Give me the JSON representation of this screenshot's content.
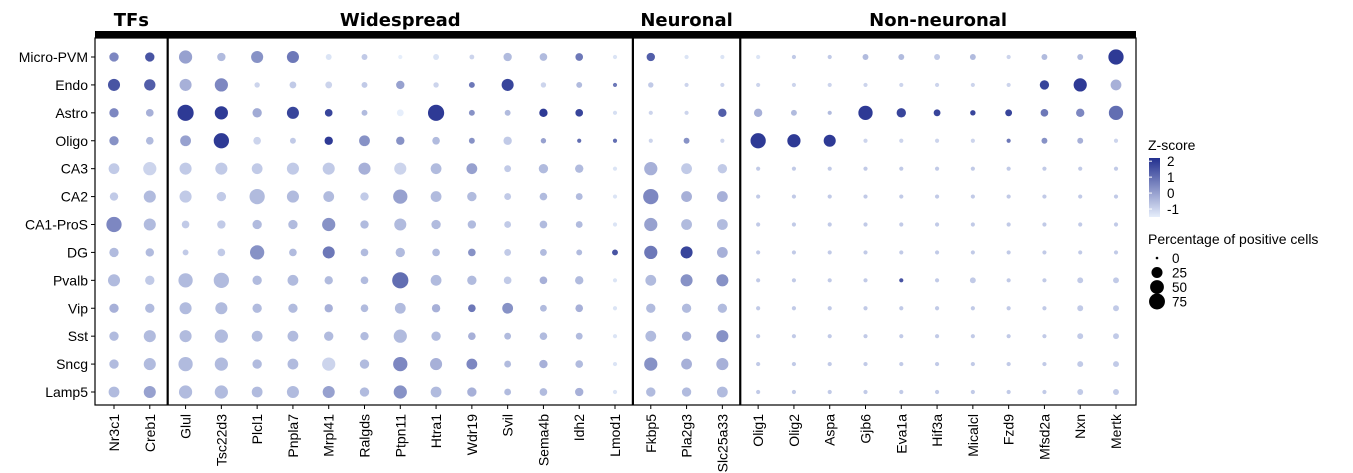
{
  "chart_data": {
    "type": "dotplot",
    "groups": [
      {
        "label": "TFs",
        "count": 2
      },
      {
        "label": "Widespread",
        "count": 13
      },
      {
        "label": "Neuronal",
        "count": 3
      },
      {
        "label": "Non-neuronal",
        "count": 11
      }
    ],
    "columns": [
      "Nr3c1",
      "Creb1",
      "Glul",
      "Tsc22d3",
      "Plcl1",
      "Pnpla7",
      "Mrpl41",
      "Ralgds",
      "Ptpn11",
      "Htra1",
      "Wdr19",
      "Svil",
      "Sema4b",
      "Idh2",
      "Lmod1",
      "Fkbp5",
      "Pla2g3",
      "Slc25a33",
      "Olig1",
      "Olig2",
      "Aspa",
      "Gjb6",
      "Eva1a",
      "Hif3a",
      "Micalcl",
      "Fzd9",
      "Mfsd2a",
      "Nxn",
      "Mertk"
    ],
    "rows": [
      "Micro-PVM",
      "Endo",
      "Astro",
      "Oligo",
      "CA3",
      "CA2",
      "CA1-ProS",
      "DG",
      "Pvalb",
      "Vip",
      "Sst",
      "Sncg",
      "Lamp5"
    ],
    "pct": [
      [
        15,
        15,
        30,
        12,
        25,
        25,
        6,
        6,
        3,
        6,
        4,
        12,
        10,
        10,
        3,
        12,
        3,
        3,
        3,
        3,
        3,
        6,
        6,
        6,
        6,
        3,
        6,
        6,
        40
      ],
      [
        25,
        22,
        25,
        30,
        5,
        8,
        8,
        6,
        12,
        5,
        6,
        25,
        5,
        6,
        3,
        5,
        3,
        3,
        3,
        3,
        3,
        3,
        3,
        3,
        3,
        3,
        15,
        30,
        20
      ],
      [
        15,
        10,
        45,
        30,
        15,
        25,
        10,
        6,
        8,
        45,
        6,
        6,
        12,
        10,
        3,
        3,
        3,
        12,
        12,
        6,
        3,
        35,
        15,
        8,
        5,
        8,
        10,
        12,
        35
      ],
      [
        15,
        10,
        20,
        40,
        10,
        6,
        12,
        20,
        12,
        10,
        6,
        12,
        5,
        3,
        3,
        3,
        6,
        3,
        40,
        30,
        25,
        3,
        3,
        3,
        3,
        3,
        6,
        6,
        3
      ],
      [
        20,
        30,
        25,
        25,
        20,
        25,
        25,
        25,
        25,
        20,
        20,
        8,
        15,
        12,
        3,
        30,
        20,
        15,
        3,
        3,
        3,
        3,
        3,
        3,
        3,
        3,
        3,
        3,
        3
      ],
      [
        12,
        25,
        25,
        15,
        40,
        25,
        20,
        12,
        35,
        20,
        15,
        8,
        10,
        8,
        3,
        40,
        20,
        20,
        3,
        3,
        3,
        3,
        3,
        3,
        3,
        3,
        3,
        3,
        3
      ],
      [
        40,
        25,
        10,
        12,
        15,
        15,
        30,
        12,
        25,
        15,
        12,
        8,
        10,
        8,
        3,
        30,
        20,
        20,
        3,
        3,
        3,
        3,
        3,
        3,
        3,
        3,
        3,
        3,
        3
      ],
      [
        15,
        12,
        6,
        10,
        35,
        10,
        25,
        10,
        15,
        10,
        10,
        8,
        8,
        6,
        6,
        30,
        25,
        20,
        3,
        3,
        3,
        3,
        3,
        3,
        3,
        3,
        3,
        3,
        3
      ],
      [
        25,
        15,
        35,
        40,
        15,
        20,
        12,
        10,
        45,
        20,
        15,
        10,
        10,
        12,
        3,
        20,
        25,
        25,
        3,
        3,
        3,
        3,
        3,
        3,
        6,
        3,
        3,
        6,
        6
      ],
      [
        15,
        15,
        25,
        25,
        15,
        15,
        12,
        10,
        20,
        12,
        10,
        20,
        8,
        10,
        3,
        15,
        15,
        15,
        3,
        3,
        3,
        3,
        3,
        3,
        3,
        3,
        3,
        6,
        6
      ],
      [
        15,
        25,
        25,
        30,
        20,
        20,
        15,
        12,
        30,
        15,
        10,
        8,
        10,
        8,
        3,
        20,
        15,
        25,
        3,
        3,
        3,
        3,
        3,
        3,
        3,
        3,
        3,
        6,
        6
      ],
      [
        15,
        25,
        35,
        30,
        15,
        20,
        30,
        15,
        35,
        25,
        20,
        8,
        12,
        10,
        3,
        30,
        20,
        25,
        3,
        3,
        3,
        3,
        3,
        3,
        3,
        3,
        3,
        6,
        6
      ],
      [
        20,
        25,
        30,
        30,
        20,
        25,
        25,
        15,
        30,
        20,
        15,
        8,
        10,
        12,
        3,
        15,
        15,
        20,
        3,
        3,
        3,
        3,
        3,
        3,
        3,
        3,
        3,
        6,
        6
      ]
    ],
    "z": [
      [
        0.5,
        1.5,
        0,
        -0.5,
        0.3,
        0.8,
        -1.3,
        -0.8,
        -1.6,
        -1.3,
        -1.0,
        -0.5,
        -0.5,
        0.8,
        -1.3,
        1.3,
        -1.3,
        -1.3,
        -1.3,
        -0.8,
        -0.8,
        -0.5,
        -0.5,
        -0.8,
        -0.5,
        -1.0,
        -0.5,
        -0.5,
        2.0
      ],
      [
        1.5,
        1.3,
        -0.3,
        0.5,
        -1.0,
        -0.8,
        -1.0,
        -0.8,
        0,
        -1.0,
        0.8,
        1.8,
        -1.0,
        -0.5,
        0.8,
        -0.8,
        -1.0,
        -1.0,
        -1.0,
        -1.0,
        -1.0,
        -1.0,
        -1.0,
        -1.0,
        -1.0,
        -1.0,
        1.8,
        2.0,
        -0.3
      ],
      [
        0.5,
        -0.3,
        2.0,
        2.0,
        -0.2,
        1.8,
        1.8,
        -0.5,
        -1.5,
        2.0,
        0.3,
        -0.5,
        2.0,
        1.8,
        -1.2,
        -1.0,
        -1.0,
        1.3,
        -0.3,
        -0.5,
        -0.5,
        2.0,
        1.8,
        1.8,
        1.8,
        1.8,
        0.8,
        0.5,
        1.0
      ],
      [
        0.3,
        -0.5,
        0,
        2.0,
        -1.0,
        -0.8,
        2.0,
        0.3,
        0.3,
        -0.5,
        0.3,
        -0.8,
        0,
        1.0,
        1.0,
        -1.0,
        0.3,
        -1.0,
        2.0,
        2.0,
        2.0,
        -1.0,
        -1.0,
        -1.0,
        -1.0,
        0.8,
        0.3,
        -0.3,
        -1.0
      ],
      [
        -0.8,
        -1.0,
        -0.8,
        -0.8,
        -0.8,
        -0.8,
        -0.8,
        -0.3,
        -1.0,
        -0.5,
        0,
        -0.8,
        -0.5,
        -0.5,
        -1.3,
        -0.3,
        -0.8,
        -0.8,
        -0.8,
        -0.8,
        -0.8,
        -0.8,
        -0.8,
        -0.8,
        -0.8,
        -0.8,
        -0.8,
        -0.8,
        -0.8
      ],
      [
        -0.8,
        -0.5,
        -0.8,
        -0.8,
        -0.5,
        -0.5,
        -0.5,
        -0.8,
        0,
        -0.5,
        -0.5,
        -0.8,
        -0.5,
        -0.5,
        -1.3,
        0.5,
        -0.3,
        -0.3,
        -0.8,
        -0.8,
        -0.8,
        -0.8,
        -0.8,
        -0.8,
        -0.8,
        -0.8,
        -0.8,
        -0.8,
        -0.8
      ],
      [
        0.5,
        -0.5,
        -0.8,
        -0.8,
        -0.5,
        -0.5,
        0.3,
        -0.5,
        -0.5,
        -0.5,
        -0.5,
        -0.8,
        -0.5,
        -0.5,
        -1.3,
        0,
        -0.5,
        -0.5,
        -0.8,
        -0.8,
        -0.8,
        -0.8,
        -0.8,
        -0.8,
        -0.8,
        -0.8,
        -0.8,
        -0.8,
        -0.8
      ],
      [
        -0.5,
        -0.5,
        -0.8,
        -0.8,
        0.3,
        -0.5,
        0.8,
        -0.5,
        -0.5,
        -0.5,
        0.3,
        -0.8,
        -0.5,
        -0.5,
        1.5,
        0.8,
        1.8,
        -0.3,
        -0.8,
        -0.8,
        -0.8,
        -0.8,
        -0.8,
        -0.8,
        -0.8,
        -0.8,
        -0.8,
        -0.8,
        -0.8
      ],
      [
        -0.5,
        -0.8,
        -0.5,
        -0.5,
        -0.5,
        -0.5,
        -0.5,
        -0.5,
        1.0,
        -0.5,
        -0.5,
        -0.8,
        -0.3,
        -0.5,
        -1.3,
        -0.5,
        0.3,
        0.3,
        -0.8,
        -0.8,
        -0.8,
        -0.8,
        1.5,
        -0.8,
        -0.8,
        -0.8,
        -0.8,
        -0.8,
        -0.8
      ],
      [
        -0.3,
        -0.5,
        -0.5,
        -0.5,
        -0.5,
        -0.5,
        -0.3,
        -0.5,
        -0.5,
        -0.3,
        0.8,
        0.3,
        -0.5,
        -0.3,
        -1.3,
        -0.5,
        -0.5,
        -0.5,
        -0.8,
        -0.8,
        -0.8,
        -0.8,
        -0.8,
        -0.8,
        -0.8,
        -0.8,
        -0.8,
        -0.8,
        -0.8
      ],
      [
        -0.5,
        -0.5,
        -0.5,
        -0.5,
        -0.5,
        -0.5,
        -0.5,
        -0.5,
        -0.5,
        -0.5,
        -0.3,
        -0.5,
        -0.5,
        -0.5,
        -1.3,
        -0.5,
        -0.3,
        0.3,
        -0.8,
        -0.8,
        -0.8,
        -0.8,
        -0.8,
        -0.8,
        -0.8,
        -0.8,
        -0.8,
        -0.8,
        -0.8
      ],
      [
        -0.5,
        -0.5,
        -0.5,
        -0.5,
        -0.5,
        -0.5,
        -1.0,
        -0.5,
        0.5,
        -0.3,
        0.5,
        -0.5,
        -0.3,
        -0.5,
        -1.3,
        0.3,
        -0.3,
        -0.3,
        -0.8,
        -0.8,
        -0.8,
        -0.8,
        -0.8,
        -0.8,
        -0.8,
        -0.8,
        -0.8,
        -0.8,
        -0.8
      ],
      [
        -0.5,
        0,
        -0.5,
        -0.5,
        -0.5,
        -0.5,
        0,
        -0.5,
        0.3,
        -0.5,
        -0.3,
        -0.5,
        -0.5,
        -0.3,
        -1.3,
        -0.5,
        -0.5,
        -0.5,
        -0.8,
        -0.8,
        -0.8,
        -0.8,
        -0.8,
        -0.8,
        -0.8,
        -0.8,
        -0.8,
        -0.8,
        -0.8
      ]
    ],
    "color_scale": {
      "low": "#e6eefb",
      "high": "#23308f",
      "domain": [
        -1.5,
        2.2
      ]
    },
    "legend": {
      "color_title": "Z-score",
      "color_ticks": [
        "2",
        "1",
        "0",
        "-1"
      ],
      "size_title": "Percentage of positive cells",
      "size_ticks": [
        "0",
        "25",
        "50",
        "75"
      ]
    }
  }
}
